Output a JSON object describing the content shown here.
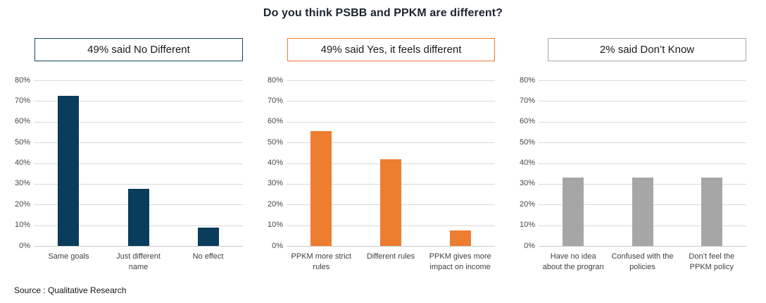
{
  "title": "Do you think PSBB and PPKM are different?",
  "source": "Source : Qualitative Research",
  "colors": {
    "navy": "#0a3c5c",
    "orange": "#ed7d31",
    "gray": "#a6a6a6",
    "gridline": "#d9d9d9",
    "axis_line": "#c9c9c9"
  },
  "chart_data": [
    {
      "type": "bar",
      "headline": "49% said No Different",
      "accent_color": "#16465f",
      "bar_color": "#0a3c5c",
      "categories": [
        "Same goals",
        "Just different\nname",
        "No effect"
      ],
      "values": [
        72.5,
        27.5,
        9
      ],
      "xlabel": "",
      "ylabel": "",
      "ylim": [
        0,
        80
      ],
      "ytick_step": 10,
      "ytick_format": "percent",
      "grid": true,
      "legend": "none"
    },
    {
      "type": "bar",
      "headline": "49% said Yes, it feels different",
      "accent_color": "#ed7d31",
      "bar_color": "#ed7d31",
      "categories": [
        "PPKM more strict\nrules",
        "Different rules",
        "PPKM gives more\nimpact on income"
      ],
      "values": [
        55.5,
        42,
        7.5
      ],
      "xlabel": "",
      "ylabel": "",
      "ylim": [
        0,
        80
      ],
      "ytick_step": 10,
      "ytick_format": "percent",
      "grid": true,
      "legend": "none"
    },
    {
      "type": "bar",
      "headline": "2% said Don’t Know",
      "accent_color": "#a6a6a6",
      "bar_color": "#a6a6a6",
      "categories": [
        "Have no idea\nabout the progran",
        "Confused with the\npolicies",
        "Don’t feel the\nPPKM policy"
      ],
      "values": [
        33,
        33,
        33
      ],
      "xlabel": "",
      "ylabel": "",
      "ylim": [
        0,
        80
      ],
      "ytick_step": 10,
      "ytick_format": "percent",
      "grid": true,
      "legend": "none"
    }
  ]
}
